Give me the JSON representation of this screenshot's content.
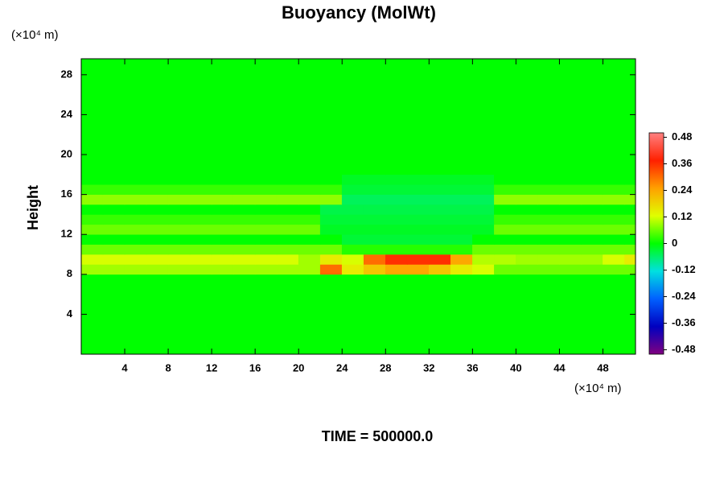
{
  "chart_data": {
    "type": "heatmap",
    "title": "Buoyancy (MolWt)",
    "y_label": "Height",
    "y_unit": "(×10⁴ m)",
    "x_unit": "(×10⁴ m)",
    "footer": "TIME = 500000.0",
    "xlim": [
      0,
      51
    ],
    "ylim": [
      0,
      29.6
    ],
    "xticks": [
      4,
      8,
      12,
      16,
      20,
      24,
      28,
      32,
      36,
      40,
      44,
      48
    ],
    "yticks": [
      4,
      8,
      12,
      16,
      20,
      24,
      28
    ],
    "clim": [
      -0.5,
      0.5
    ],
    "cticks": [
      -0.48,
      -0.36,
      -0.24,
      -0.12,
      0,
      0.12,
      0.24,
      0.36,
      0.48
    ],
    "colormap": [
      "#800080",
      "#0000c0",
      "#0060ff",
      "#00e0e0",
      "#00ff00",
      "#e0ff00",
      "#ffa000",
      "#ff2000",
      "#ff8080"
    ],
    "x": [
      1,
      3,
      5,
      7,
      9,
      11,
      13,
      15,
      17,
      19,
      21,
      23,
      25,
      27,
      29,
      31,
      33,
      35,
      37,
      39,
      41,
      43,
      45,
      47,
      49,
      51
    ],
    "y": [
      0.5,
      1.5,
      2.5,
      3.5,
      4.5,
      5.5,
      6.5,
      7.5,
      8.5,
      9.5,
      10.5,
      11.5,
      12.5,
      13.5,
      14.5,
      15.5,
      16.5,
      17.5,
      18.5,
      19.5,
      20.5,
      21.5,
      22.5,
      23.5,
      24.5,
      25.5,
      26.5,
      27.5,
      28.5,
      29.5
    ],
    "z": [
      [
        0,
        0,
        0,
        0,
        0,
        0,
        0,
        0,
        0,
        0,
        0,
        0,
        0,
        0,
        0,
        0,
        0,
        0,
        0,
        0,
        0,
        0,
        0,
        0,
        0,
        0
      ],
      [
        0,
        0,
        0,
        0,
        0,
        0,
        0,
        0,
        0,
        0,
        0,
        0,
        0,
        0,
        0,
        0,
        0,
        0,
        0,
        0,
        0,
        0,
        0,
        0,
        0,
        0
      ],
      [
        0,
        0,
        0,
        0,
        0,
        0,
        0,
        0,
        0,
        0,
        0,
        0,
        0,
        0,
        0,
        0,
        0,
        0,
        0,
        0,
        0,
        0,
        0,
        0,
        0,
        0
      ],
      [
        0,
        0,
        0,
        0,
        0,
        0,
        0,
        0,
        0,
        0,
        0,
        0,
        0,
        0,
        0,
        0,
        0,
        0,
        0,
        0,
        0,
        0,
        0,
        0,
        0,
        0
      ],
      [
        0,
        0,
        0,
        0,
        0,
        0,
        0,
        0,
        0,
        0,
        0,
        0,
        0,
        0,
        0,
        0,
        0,
        0,
        0,
        0,
        0,
        0,
        0,
        0,
        0,
        0
      ],
      [
        0,
        0,
        0,
        0,
        0,
        0,
        0,
        0,
        0,
        0,
        0,
        0,
        0,
        0,
        0,
        0,
        0,
        0,
        0,
        0,
        0,
        0,
        0,
        0,
        0,
        0
      ],
      [
        0,
        0,
        0,
        0,
        0,
        0,
        0,
        0,
        0,
        0,
        0,
        0,
        0,
        0,
        0,
        0,
        0,
        0,
        0,
        0,
        0,
        0,
        0,
        0,
        0,
        0
      ],
      [
        0,
        0,
        0,
        0,
        0,
        0,
        0,
        0,
        0,
        0,
        0,
        0,
        0,
        0,
        0,
        0,
        0,
        0,
        0,
        0,
        0,
        0,
        0,
        0,
        0,
        0
      ],
      [
        0.09,
        0.09,
        0.09,
        0.09,
        0.09,
        0.09,
        0.09,
        0.09,
        0.09,
        0.09,
        0.09,
        0.3,
        0.15,
        0.2,
        0.24,
        0.24,
        0.2,
        0.15,
        0.12,
        0.06,
        0.06,
        0.06,
        0.06,
        0.06,
        0.06,
        0.06
      ],
      [
        0.12,
        0.12,
        0.12,
        0.12,
        0.12,
        0.12,
        0.12,
        0.12,
        0.12,
        0.12,
        0.09,
        0.15,
        0.12,
        0.3,
        0.36,
        0.36,
        0.36,
        0.24,
        0.1,
        0.1,
        0.09,
        0.09,
        0.09,
        0.09,
        0.12,
        0.15
      ],
      [
        0.06,
        0.06,
        0.06,
        0.06,
        0.06,
        0.06,
        0.06,
        0.06,
        0.06,
        0.06,
        0.06,
        0.06,
        0.02,
        0.02,
        0.02,
        0.02,
        0.02,
        0.02,
        0.06,
        0.06,
        0.06,
        0.06,
        0.06,
        0.06,
        0.06,
        0.06
      ],
      [
        0,
        0,
        0,
        0,
        0,
        0,
        0,
        0,
        0,
        0,
        0,
        0,
        -0.03,
        -0.03,
        -0.03,
        -0.03,
        -0.03,
        -0.03,
        0,
        0,
        0,
        0,
        0,
        0,
        0,
        0
      ],
      [
        0.06,
        0.06,
        0.06,
        0.06,
        0.06,
        0.06,
        0.06,
        0.06,
        0.06,
        0.06,
        0.06,
        -0.02,
        -0.02,
        -0.02,
        -0.02,
        -0.02,
        -0.02,
        -0.02,
        -0.02,
        0.06,
        0.06,
        0.06,
        0.06,
        0.06,
        0.06,
        0.06
      ],
      [
        0.03,
        0.03,
        0.03,
        0.03,
        0.03,
        0.03,
        0.03,
        0.03,
        0.03,
        0.03,
        0.03,
        -0.03,
        -0.03,
        -0.03,
        -0.03,
        -0.03,
        -0.03,
        -0.03,
        -0.03,
        0.03,
        0.03,
        0.03,
        0.03,
        0.03,
        0.03,
        0.03
      ],
      [
        0,
        0,
        0,
        0,
        0,
        0,
        0,
        0,
        0,
        0,
        0,
        -0.04,
        -0.04,
        -0.04,
        -0.04,
        -0.04,
        -0.04,
        -0.04,
        -0.04,
        0,
        0,
        0,
        0,
        0,
        0,
        0
      ],
      [
        0.08,
        0.08,
        0.08,
        0.08,
        0.08,
        0.08,
        0.08,
        0.08,
        0.08,
        0.08,
        0.08,
        0.08,
        -0.05,
        -0.05,
        -0.05,
        -0.05,
        -0.05,
        -0.05,
        -0.05,
        0.08,
        0.08,
        0.08,
        0.08,
        0.08,
        0.08,
        0.08
      ],
      [
        0.03,
        0.03,
        0.03,
        0.03,
        0.03,
        0.03,
        0.03,
        0.03,
        0.03,
        0.03,
        0.03,
        0.03,
        -0.03,
        -0.03,
        -0.03,
        -0.03,
        -0.03,
        -0.03,
        -0.03,
        0.03,
        0.03,
        0.03,
        0.03,
        0.03,
        0.03,
        0.03
      ],
      [
        0,
        0,
        0,
        0,
        0,
        0,
        0,
        0,
        0,
        0,
        0,
        0,
        -0.02,
        -0.02,
        -0.02,
        -0.02,
        -0.02,
        -0.02,
        -0.02,
        0,
        0,
        0,
        0,
        0,
        0,
        0
      ],
      [
        0,
        0,
        0,
        0,
        0,
        0,
        0,
        0,
        0,
        0,
        0,
        0,
        0,
        0,
        0,
        0,
        0,
        0,
        0,
        0,
        0,
        0,
        0,
        0,
        0,
        0
      ],
      [
        0,
        0,
        0,
        0,
        0,
        0,
        0,
        0,
        0,
        0,
        0,
        0,
        0,
        0,
        0,
        0,
        0,
        0,
        0,
        0,
        0,
        0,
        0,
        0,
        0,
        0
      ],
      [
        0,
        0,
        0,
        0,
        0,
        0,
        0,
        0,
        0,
        0,
        0,
        0,
        0,
        0,
        0,
        0,
        0,
        0,
        0,
        0,
        0,
        0,
        0,
        0,
        0,
        0
      ],
      [
        0,
        0,
        0,
        0,
        0,
        0,
        0,
        0,
        0,
        0,
        0,
        0,
        0,
        0,
        0,
        0,
        0,
        0,
        0,
        0,
        0,
        0,
        0,
        0,
        0,
        0
      ],
      [
        0,
        0,
        0,
        0,
        0,
        0,
        0,
        0,
        0,
        0,
        0,
        0,
        0,
        0,
        0,
        0,
        0,
        0,
        0,
        0,
        0,
        0,
        0,
        0,
        0,
        0
      ],
      [
        0,
        0,
        0,
        0,
        0,
        0,
        0,
        0,
        0,
        0,
        0,
        0,
        0,
        0,
        0,
        0,
        0,
        0,
        0,
        0,
        0,
        0,
        0,
        0,
        0,
        0
      ],
      [
        0,
        0,
        0,
        0,
        0,
        0,
        0,
        0,
        0,
        0,
        0,
        0,
        0,
        0,
        0,
        0,
        0,
        0,
        0,
        0,
        0,
        0,
        0,
        0,
        0,
        0
      ],
      [
        0,
        0,
        0,
        0,
        0,
        0,
        0,
        0,
        0,
        0,
        0,
        0,
        0,
        0,
        0,
        0,
        0,
        0,
        0,
        0,
        0,
        0,
        0,
        0,
        0,
        0
      ],
      [
        0,
        0,
        0,
        0,
        0,
        0,
        0,
        0,
        0,
        0,
        0,
        0,
        0,
        0,
        0,
        0,
        0,
        0,
        0,
        0,
        0,
        0,
        0,
        0,
        0,
        0
      ],
      [
        0,
        0,
        0,
        0,
        0,
        0,
        0,
        0,
        0,
        0,
        0,
        0,
        0,
        0,
        0,
        0,
        0,
        0,
        0,
        0,
        0,
        0,
        0,
        0,
        0,
        0
      ],
      [
        0,
        0,
        0,
        0,
        0,
        0,
        0,
        0,
        0,
        0,
        0,
        0,
        0,
        0,
        0,
        0,
        0,
        0,
        0,
        0,
        0,
        0,
        0,
        0,
        0,
        0
      ],
      [
        0,
        0,
        0,
        0,
        0,
        0,
        0,
        0,
        0,
        0,
        0,
        0,
        0,
        0,
        0,
        0,
        0,
        0,
        0,
        0,
        0,
        0,
        0,
        0,
        0,
        0
      ]
    ]
  }
}
